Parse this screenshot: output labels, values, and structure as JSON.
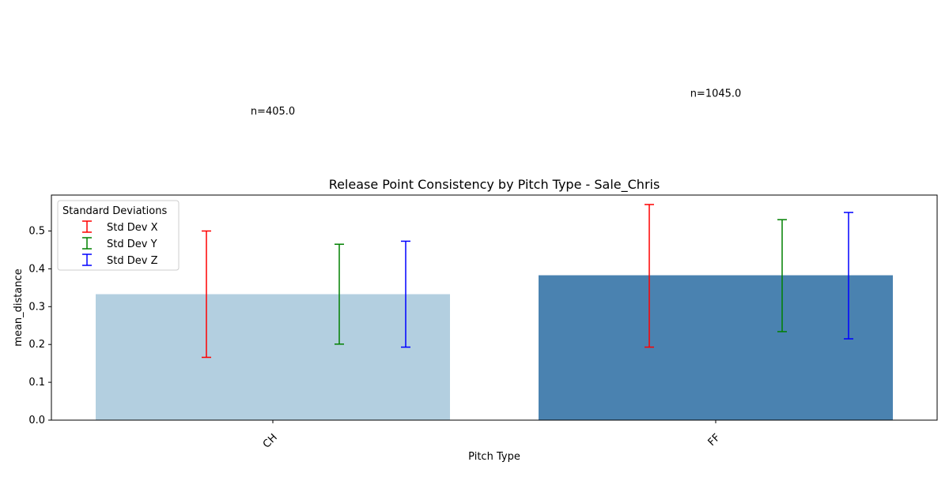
{
  "chart_data": {
    "type": "bar",
    "title": "Release Point Consistency by Pitch Type - Sale_Chris",
    "xlabel": "Pitch Type",
    "ylabel": "mean_distance",
    "categories": [
      "CH",
      "FF"
    ],
    "values": [
      0.333,
      0.383
    ],
    "bar_colors": [
      "#b3cfe0",
      "#4a82b0"
    ],
    "ylim": [
      0,
      0.595
    ],
    "yticks": [
      "0.0",
      "0.1",
      "0.2",
      "0.3",
      "0.4",
      "0.5"
    ],
    "counts": [
      "n=405.0",
      "n=1045.0"
    ],
    "count_levels": [
      0.86,
      0.91
    ],
    "error_series": [
      {
        "name": "Std Dev X",
        "color": "#ff0000",
        "ranges": [
          [
            0.166,
            0.5
          ],
          [
            0.193,
            0.57
          ]
        ]
      },
      {
        "name": "Std Dev Y",
        "color": "#008000",
        "ranges": [
          [
            0.201,
            0.465
          ],
          [
            0.234,
            0.53
          ]
        ]
      },
      {
        "name": "Std Dev Z",
        "color": "#0000ff",
        "ranges": [
          [
            0.193,
            0.473
          ],
          [
            0.215,
            0.549
          ]
        ]
      }
    ],
    "legend": {
      "title": "Standard Deviations",
      "placement": "upper-left"
    },
    "grid": false
  }
}
